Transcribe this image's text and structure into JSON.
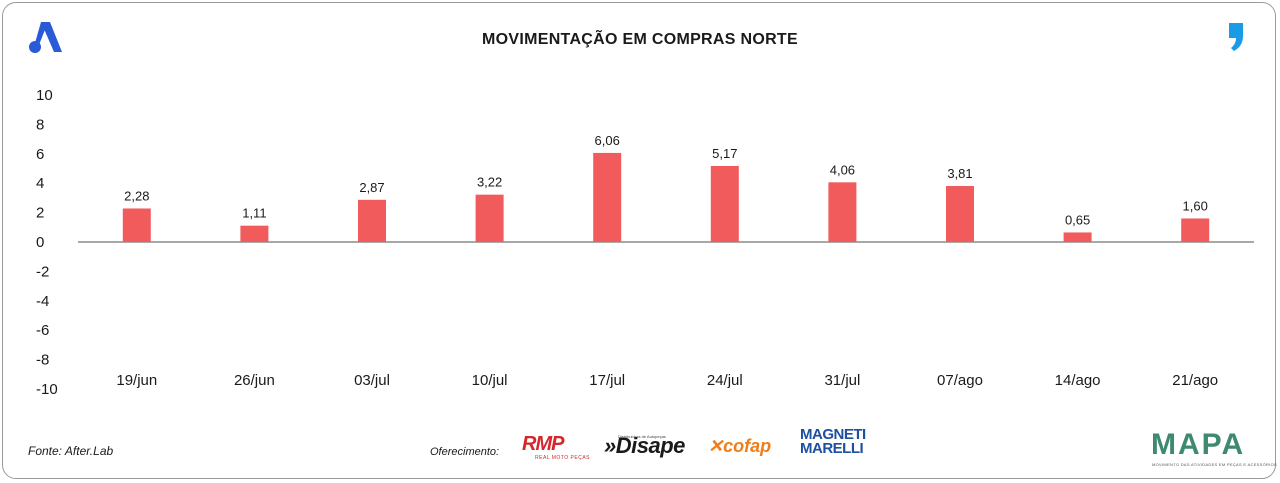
{
  "chart_data": {
    "type": "bar",
    "title": "MOVIMENTAÇÃO EM COMPRAS NORTE",
    "categories": [
      "19/jun",
      "26/jun",
      "03/jul",
      "10/jul",
      "17/jul",
      "24/jul",
      "31/jul",
      "07/ago",
      "14/ago",
      "21/ago"
    ],
    "values": [
      2.28,
      1.11,
      2.87,
      3.22,
      6.06,
      5.17,
      4.06,
      3.81,
      0.65,
      1.6
    ],
    "value_labels": [
      "2,28",
      "1,11",
      "2,87",
      "3,22",
      "6,06",
      "5,17",
      "4,06",
      "3,81",
      "0,65",
      "1,60"
    ],
    "ylim": [
      -10,
      10
    ],
    "yticks": [
      10,
      8,
      6,
      4,
      2,
      0,
      -2,
      -4,
      -6,
      -8,
      -10
    ],
    "ytick_labels": [
      "10",
      "8",
      "6",
      "4",
      "2",
      "0",
      "-2",
      "-4",
      "-6",
      "-8",
      "-10"
    ],
    "bar_color": "#f15b5b",
    "axis_color": "#8c8c8c",
    "xlabel": "",
    "ylabel": "",
    "grid": false
  },
  "footer": {
    "source": "Fonte: After.Lab",
    "offer_label": "Oferecimento:",
    "sponsors": {
      "rmp": "RMP",
      "rmp_sub": "REAL MOTO PEÇAS",
      "disape": "»Disape",
      "disape_sub": "Distribuidora de Autopeças",
      "cofap": "cofap",
      "magneti_line1": "MAGNETI",
      "magneti_line2": "MARELLI"
    },
    "mapa": "MAPA",
    "mapa_sub": "MOVIMENTO DAS ATIVIDADES EM PEÇAS E ACESSÓRIOS"
  },
  "colors": {
    "logo_blue": "#2a5bd7",
    "quote_blue": "#1a9be6",
    "mapa_green": "#3d8a6e"
  }
}
